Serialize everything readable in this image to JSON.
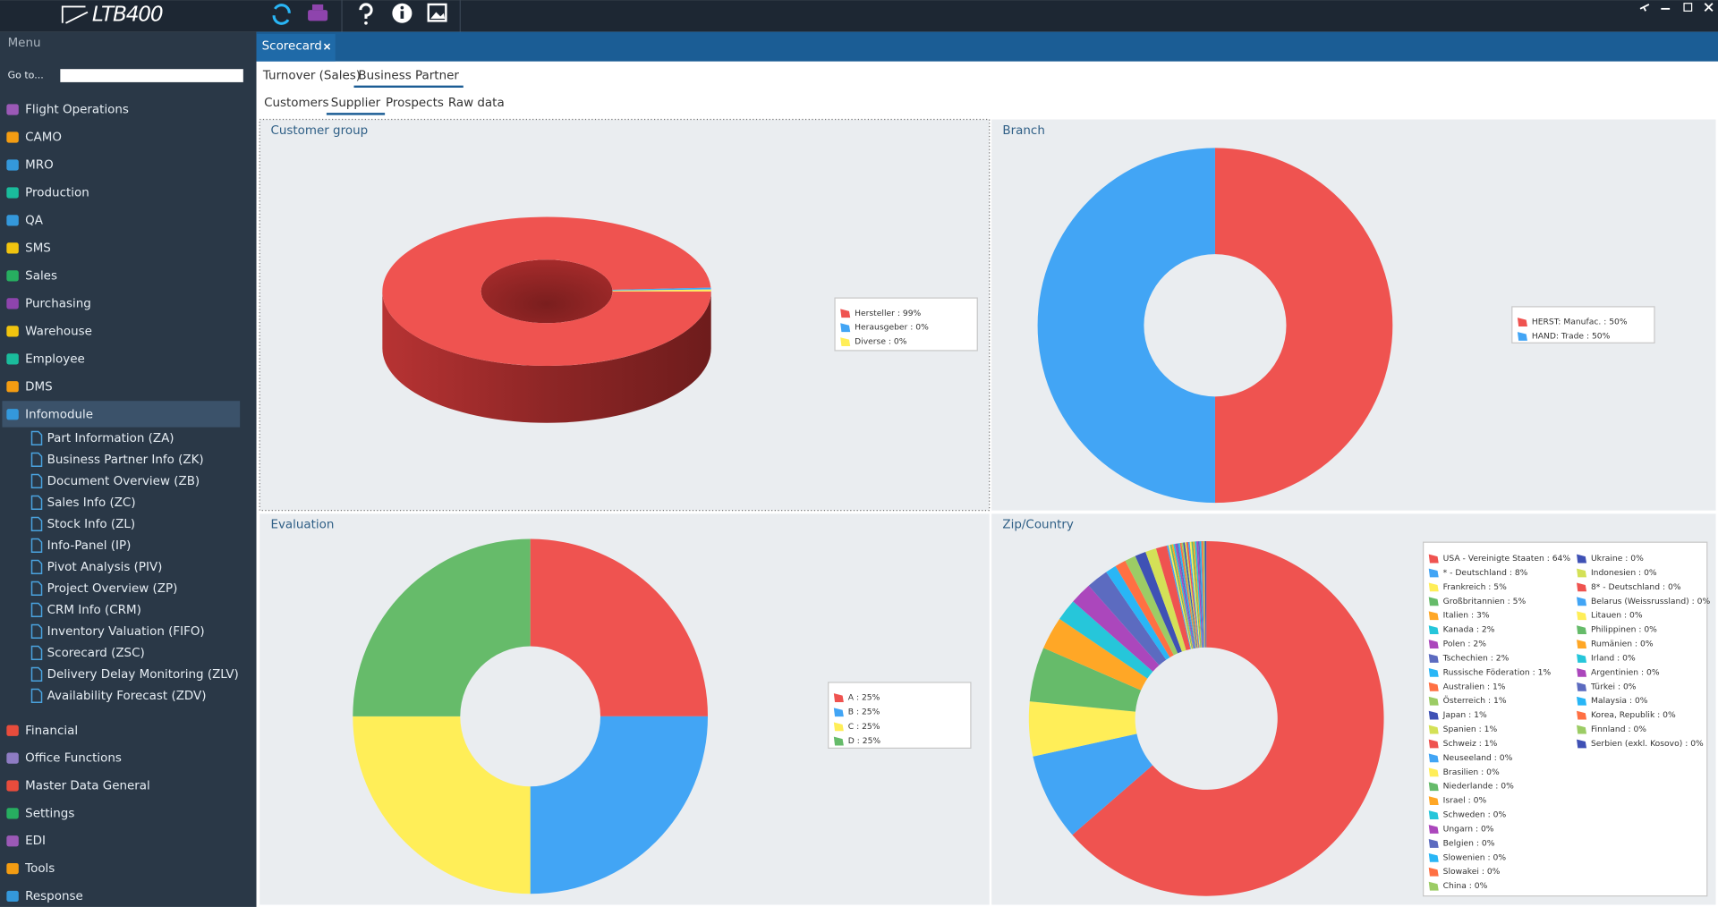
{
  "app": {
    "logo": "LTB400"
  },
  "sidebar": {
    "title": "Menu",
    "goto": "Go to...",
    "items": [
      "Flight Operations",
      "CAMO",
      "MRO",
      "Production",
      "QA",
      "SMS",
      "Sales",
      "Purchasing",
      "Warehouse",
      "Employee",
      "DMS",
      "Infomodule"
    ],
    "sub_items": [
      "Part Information (ZA)",
      "Business Partner Info (ZK)",
      "Document Overview (ZB)",
      "Sales Info (ZC)",
      "Stock Info (ZL)",
      "Info-Panel (IP)",
      "Pivot Analysis (PIV)",
      "Project Overview (ZP)",
      "CRM Info (CRM)",
      "Inventory Valuation (FIFO)",
      "Scorecard (ZSC)",
      "Delivery Delay Monitoring (ZLV)",
      "Availability Forecast (ZDV)"
    ],
    "items_after": [
      "Financial",
      "Office Functions",
      "Master Data General",
      "Settings",
      "EDI",
      "Tools",
      "Response"
    ]
  },
  "tab": "Scorecard",
  "tabs": [
    "Turnover (Sales)",
    "Business Partner"
  ],
  "subtabs": [
    "Customers",
    "Supplier",
    "Prospects",
    "Raw data"
  ],
  "chart_data": [
    {
      "type": "donut3d",
      "title": "Customer group",
      "categories": [
        "Hersteller : 99%",
        "Herausgeber : 0%",
        "Diverse : 0%"
      ],
      "values": [
        99.2,
        0.4,
        0.4
      ],
      "colors": [
        "#ef5350",
        "#42a5f5",
        "#ffee58"
      ]
    },
    {
      "type": "donut",
      "title": "Branch",
      "categories": [
        "HERST: Manufac. : 50%",
        "HAND: Trade : 50%"
      ],
      "values": [
        50,
        50
      ],
      "colors": [
        "#ef5350",
        "#42a5f5"
      ]
    },
    {
      "type": "donut",
      "title": "Evaluation",
      "categories": [
        "A : 25%",
        "B : 25%",
        "C : 25%",
        "D : 25%"
      ],
      "values": [
        25,
        25,
        25,
        25
      ],
      "colors": [
        "#ef5350",
        "#42a5f5",
        "#ffee58",
        "#66bb6a"
      ]
    },
    {
      "type": "donut",
      "title": "Zip/Country",
      "categories": [
        "USA - Vereinigte Staaten : 64%",
        "* - Deutschland : 8%",
        "Frankreich : 5%",
        "Großbritannien : 5%",
        "Italien : 3%",
        "Kanada : 2%",
        "Polen : 2%",
        "Tschechien : 2%",
        "Russische Föderation : 1%",
        "Australien : 1%",
        "Österreich : 1%",
        "Japan : 1%",
        "Spanien : 1%",
        "Schweiz : 1%",
        "Neuseeland : 0%",
        "Brasilien : 0%",
        "Niederlande : 0%",
        "Israel : 0%",
        "Schweden : 0%",
        "Ungarn : 0%",
        "Belgien : 0%",
        "Slowenien : 0%",
        "Slowakei : 0%",
        "China : 0%",
        "Ukraine : 0%",
        "Indonesien : 0%",
        "8* - Deutschland : 0%",
        "Belarus (Weissrussland) : 0%",
        "Litauen : 0%",
        "Philippinen : 0%",
        "Rumänien : 0%",
        "Irland : 0%",
        "Argentinien : 0%",
        "Türkei : 0%",
        "Malaysia : 0%",
        "Korea, Republik : 0%",
        "Finnland : 0%",
        "Serbien (exkl. Kosovo) : 0%"
      ],
      "values": [
        64,
        8,
        5,
        5,
        3,
        2,
        2,
        2,
        1,
        1,
        1,
        1,
        1,
        1,
        0.15,
        0.15,
        0.15,
        0.15,
        0.15,
        0.15,
        0.15,
        0.15,
        0.15,
        0.15,
        0.15,
        0.15,
        0.15,
        0.15,
        0.15,
        0.15,
        0.15,
        0.15,
        0.15,
        0.15,
        0.15,
        0.15,
        0.15,
        0.15
      ],
      "colors": [
        "#ef5350",
        "#42a5f5",
        "#ffee58",
        "#66bb6a",
        "#ffa726",
        "#26c6da",
        "#ab47bc",
        "#5c6bc0",
        "#29b6f6",
        "#ff7043",
        "#9ccc65",
        "#3f51b5",
        "#d4e157"
      ]
    }
  ]
}
